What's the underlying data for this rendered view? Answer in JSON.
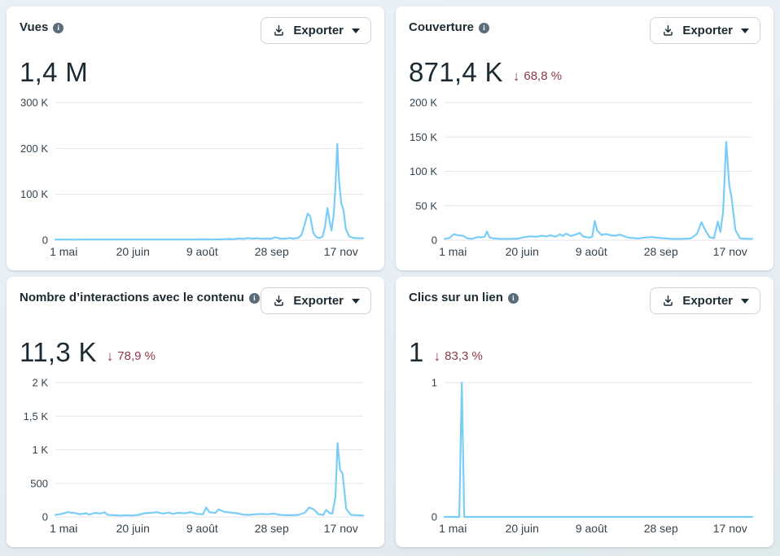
{
  "colors": {
    "line": "#79cdf6",
    "grid": "#e4e6ea",
    "axis_text": "#33424d",
    "title_text": "#1c2b33",
    "negative": "#8b3a4b",
    "card_bg": "#ffffff",
    "page_bg": "#e8eef6"
  },
  "icons": {
    "export_download": "tray-arrow-down",
    "export_caret": "caret-down",
    "info": "circle-info",
    "negative_arrow": "↓",
    "info_glyph": "i"
  },
  "cards": [
    {
      "title": "Vues",
      "export_label": "Exporter",
      "value": "1,4 M",
      "change_arrow": null,
      "change": null
    },
    {
      "title": "Couverture",
      "export_label": "Exporter",
      "value": "871,4 K",
      "change_arrow": "↓",
      "change": "68,8 %"
    },
    {
      "title": "Nombre d’interactions avec le contenu",
      "export_label": "Exporter",
      "value": "11,3 K",
      "change_arrow": "↓",
      "change": "78,9 %"
    },
    {
      "title": "Clics sur un lien",
      "export_label": "Exporter",
      "value": "1",
      "change_arrow": "↓",
      "change": "83,3 %"
    }
  ],
  "chart_data": [
    {
      "type": "line",
      "title": "Vues",
      "xlabel": "",
      "ylabel": "",
      "grid": true,
      "legend": "none",
      "ylim": [
        0,
        300000
      ],
      "yticks": [
        {
          "label": "0",
          "value": 0
        },
        {
          "label": "100 K",
          "value": 100000
        },
        {
          "label": "200 K",
          "value": 200000
        },
        {
          "label": "300 K",
          "value": 300000
        }
      ],
      "xticks": [
        {
          "label": "1 mai",
          "pos": 0.027
        },
        {
          "label": "20 juin",
          "pos": 0.252
        },
        {
          "label": "9 août",
          "pos": 0.477
        },
        {
          "label": "28 sep",
          "pos": 0.703
        },
        {
          "label": "17 nov",
          "pos": 0.928
        }
      ],
      "series": [
        {
          "name": "Vues",
          "points": [
            [
              0,
              1200
            ],
            [
              0.03,
              1500
            ],
            [
              0.06,
              1300
            ],
            [
              0.09,
              1500
            ],
            [
              0.12,
              1400
            ],
            [
              0.15,
              1500
            ],
            [
              0.18,
              1400
            ],
            [
              0.21,
              1500
            ],
            [
              0.24,
              1400
            ],
            [
              0.27,
              1500
            ],
            [
              0.3,
              1400
            ],
            [
              0.33,
              1500
            ],
            [
              0.36,
              1400
            ],
            [
              0.39,
              1500
            ],
            [
              0.42,
              1500
            ],
            [
              0.45,
              1500
            ],
            [
              0.48,
              1700
            ],
            [
              0.51,
              1500
            ],
            [
              0.54,
              1800
            ],
            [
              0.565,
              2600
            ],
            [
              0.58,
              2200
            ],
            [
              0.595,
              3800
            ],
            [
              0.61,
              2800
            ],
            [
              0.625,
              4600
            ],
            [
              0.64,
              3400
            ],
            [
              0.655,
              4200
            ],
            [
              0.67,
              3000
            ],
            [
              0.685,
              3600
            ],
            [
              0.7,
              3000
            ],
            [
              0.715,
              6200
            ],
            [
              0.73,
              3400
            ],
            [
              0.745,
              3200
            ],
            [
              0.76,
              4600
            ],
            [
              0.775,
              3400
            ],
            [
              0.79,
              5200
            ],
            [
              0.8,
              12000
            ],
            [
              0.81,
              34000
            ],
            [
              0.82,
              58000
            ],
            [
              0.828,
              52000
            ],
            [
              0.838,
              16000
            ],
            [
              0.848,
              6500
            ],
            [
              0.858,
              4500
            ],
            [
              0.868,
              7500
            ],
            [
              0.876,
              28000
            ],
            [
              0.884,
              70000
            ],
            [
              0.89,
              46000
            ],
            [
              0.897,
              21000
            ],
            [
              0.904,
              52000
            ],
            [
              0.91,
              115000
            ],
            [
              0.916,
              210000
            ],
            [
              0.922,
              128000
            ],
            [
              0.929,
              80000
            ],
            [
              0.936,
              66000
            ],
            [
              0.944,
              24000
            ],
            [
              0.955,
              8000
            ],
            [
              0.97,
              4600
            ],
            [
              0.985,
              4200
            ],
            [
              1,
              4200
            ]
          ]
        }
      ]
    },
    {
      "type": "line",
      "title": "Couverture",
      "xlabel": "",
      "ylabel": "",
      "grid": true,
      "legend": "none",
      "ylim": [
        0,
        200000
      ],
      "yticks": [
        {
          "label": "0",
          "value": 0
        },
        {
          "label": "50 K",
          "value": 50000
        },
        {
          "label": "100 K",
          "value": 100000
        },
        {
          "label": "150 K",
          "value": 150000
        },
        {
          "label": "200 K",
          "value": 200000
        }
      ],
      "xticks": [
        {
          "label": "1 mai",
          "pos": 0.027
        },
        {
          "label": "20 juin",
          "pos": 0.252
        },
        {
          "label": "9 août",
          "pos": 0.477
        },
        {
          "label": "28 sep",
          "pos": 0.703
        },
        {
          "label": "17 nov",
          "pos": 0.928
        }
      ],
      "series": [
        {
          "name": "Couverture",
          "points": [
            [
              0,
              2000
            ],
            [
              0.015,
              3000
            ],
            [
              0.03,
              8500
            ],
            [
              0.045,
              7000
            ],
            [
              0.06,
              6500
            ],
            [
              0.075,
              2500
            ],
            [
              0.09,
              2000
            ],
            [
              0.1,
              3500
            ],
            [
              0.11,
              4500
            ],
            [
              0.12,
              4000
            ],
            [
              0.13,
              5000
            ],
            [
              0.138,
              12500
            ],
            [
              0.146,
              4000
            ],
            [
              0.16,
              2500
            ],
            [
              0.18,
              2000
            ],
            [
              0.2,
              1800
            ],
            [
              0.22,
              2000
            ],
            [
              0.24,
              2200
            ],
            [
              0.26,
              4500
            ],
            [
              0.28,
              5500
            ],
            [
              0.3,
              5000
            ],
            [
              0.315,
              6500
            ],
            [
              0.33,
              5500
            ],
            [
              0.345,
              7000
            ],
            [
              0.36,
              5000
            ],
            [
              0.375,
              8500
            ],
            [
              0.385,
              6000
            ],
            [
              0.395,
              9500
            ],
            [
              0.41,
              6000
            ],
            [
              0.425,
              8000
            ],
            [
              0.44,
              10500
            ],
            [
              0.45,
              5500
            ],
            [
              0.46,
              4500
            ],
            [
              0.47,
              3500
            ],
            [
              0.48,
              5000
            ],
            [
              0.488,
              28000
            ],
            [
              0.496,
              14000
            ],
            [
              0.51,
              7500
            ],
            [
              0.525,
              9000
            ],
            [
              0.54,
              7000
            ],
            [
              0.555,
              6500
            ],
            [
              0.57,
              8000
            ],
            [
              0.585,
              5500
            ],
            [
              0.6,
              3500
            ],
            [
              0.615,
              3000
            ],
            [
              0.63,
              2500
            ],
            [
              0.645,
              3500
            ],
            [
              0.66,
              4000
            ],
            [
              0.675,
              4500
            ],
            [
              0.69,
              3500
            ],
            [
              0.705,
              3000
            ],
            [
              0.72,
              2500
            ],
            [
              0.735,
              2000
            ],
            [
              0.75,
              1800
            ],
            [
              0.765,
              1800
            ],
            [
              0.78,
              2000
            ],
            [
              0.8,
              2500
            ],
            [
              0.82,
              9000
            ],
            [
              0.835,
              26000
            ],
            [
              0.85,
              12000
            ],
            [
              0.862,
              4000
            ],
            [
              0.875,
              3000
            ],
            [
              0.888,
              27000
            ],
            [
              0.896,
              12000
            ],
            [
              0.905,
              40000
            ],
            [
              0.915,
              143000
            ],
            [
              0.925,
              80000
            ],
            [
              0.933,
              60000
            ],
            [
              0.945,
              15000
            ],
            [
              0.96,
              2500
            ],
            [
              0.98,
              2000
            ],
            [
              1,
              2000
            ]
          ]
        }
      ]
    },
    {
      "type": "line",
      "title": "Nombre d’interactions avec le contenu",
      "xlabel": "",
      "ylabel": "",
      "grid": true,
      "legend": "none",
      "ylim": [
        0,
        2000
      ],
      "yticks": [
        {
          "label": "0",
          "value": 0
        },
        {
          "label": "500",
          "value": 500
        },
        {
          "label": "1 K",
          "value": 1000
        },
        {
          "label": "1,5 K",
          "value": 1500
        },
        {
          "label": "2 K",
          "value": 2000
        }
      ],
      "xticks": [
        {
          "label": "1 mai",
          "pos": 0.027
        },
        {
          "label": "20 juin",
          "pos": 0.252
        },
        {
          "label": "9 août",
          "pos": 0.477
        },
        {
          "label": "28 sep",
          "pos": 0.703
        },
        {
          "label": "17 nov",
          "pos": 0.928
        }
      ],
      "series": [
        {
          "name": "Interactions",
          "points": [
            [
              0,
              30
            ],
            [
              0.02,
              45
            ],
            [
              0.04,
              70
            ],
            [
              0.06,
              60
            ],
            [
              0.08,
              40
            ],
            [
              0.1,
              55
            ],
            [
              0.11,
              35
            ],
            [
              0.13,
              60
            ],
            [
              0.145,
              50
            ],
            [
              0.16,
              70
            ],
            [
              0.17,
              30
            ],
            [
              0.19,
              25
            ],
            [
              0.21,
              20
            ],
            [
              0.23,
              25
            ],
            [
              0.25,
              20
            ],
            [
              0.27,
              30
            ],
            [
              0.29,
              55
            ],
            [
              0.31,
              60
            ],
            [
              0.33,
              70
            ],
            [
              0.35,
              50
            ],
            [
              0.37,
              65
            ],
            [
              0.38,
              45
            ],
            [
              0.4,
              60
            ],
            [
              0.42,
              55
            ],
            [
              0.44,
              70
            ],
            [
              0.46,
              45
            ],
            [
              0.48,
              40
            ],
            [
              0.49,
              140
            ],
            [
              0.5,
              70
            ],
            [
              0.52,
              60
            ],
            [
              0.53,
              110
            ],
            [
              0.55,
              75
            ],
            [
              0.57,
              65
            ],
            [
              0.59,
              55
            ],
            [
              0.61,
              35
            ],
            [
              0.63,
              30
            ],
            [
              0.65,
              40
            ],
            [
              0.67,
              45
            ],
            [
              0.69,
              40
            ],
            [
              0.71,
              50
            ],
            [
              0.73,
              30
            ],
            [
              0.75,
              25
            ],
            [
              0.77,
              25
            ],
            [
              0.79,
              30
            ],
            [
              0.81,
              60
            ],
            [
              0.825,
              140
            ],
            [
              0.84,
              110
            ],
            [
              0.855,
              40
            ],
            [
              0.87,
              30
            ],
            [
              0.88,
              105
            ],
            [
              0.89,
              60
            ],
            [
              0.9,
              45
            ],
            [
              0.91,
              300
            ],
            [
              0.917,
              1100
            ],
            [
              0.925,
              700
            ],
            [
              0.933,
              650
            ],
            [
              0.945,
              120
            ],
            [
              0.96,
              30
            ],
            [
              0.98,
              25
            ],
            [
              1,
              20
            ]
          ]
        }
      ]
    },
    {
      "type": "line",
      "title": "Clics sur un lien",
      "xlabel": "",
      "ylabel": "",
      "grid": true,
      "legend": "none",
      "ylim": [
        0,
        1
      ],
      "yticks": [
        {
          "label": "0",
          "value": 0
        },
        {
          "label": "1",
          "value": 1
        }
      ],
      "xticks": [
        {
          "label": "1 mai",
          "pos": 0.027
        },
        {
          "label": "20 juin",
          "pos": 0.252
        },
        {
          "label": "9 août",
          "pos": 0.477
        },
        {
          "label": "28 sep",
          "pos": 0.703
        },
        {
          "label": "17 nov",
          "pos": 0.928
        }
      ],
      "series": [
        {
          "name": "Clics sur un lien",
          "points": [
            [
              0,
              0
            ],
            [
              0.048,
              0
            ],
            [
              0.056,
              1
            ],
            [
              0.064,
              0
            ],
            [
              0.25,
              0
            ],
            [
              0.5,
              0
            ],
            [
              0.75,
              0
            ],
            [
              1,
              0
            ]
          ]
        }
      ]
    }
  ]
}
